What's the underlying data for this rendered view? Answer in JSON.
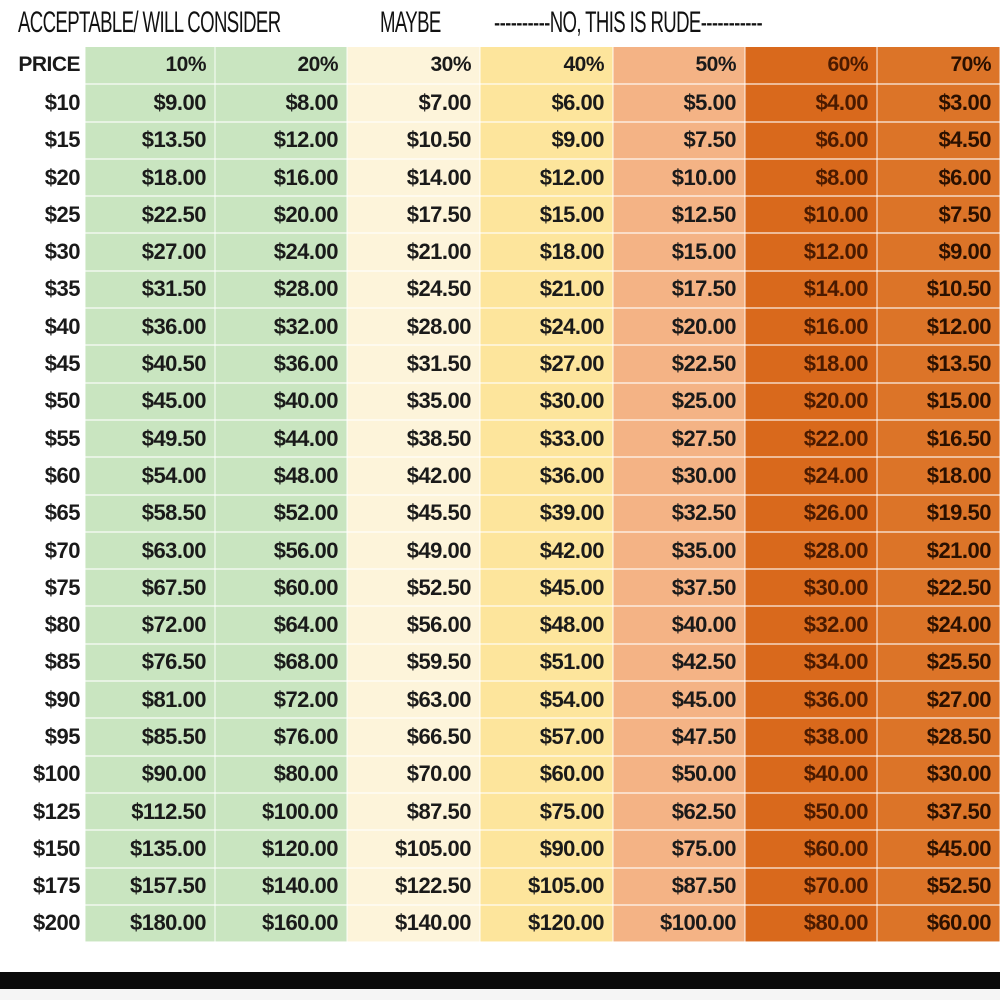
{
  "headings": {
    "acceptable": "ACCEPTABLE/ WILL CONSIDER",
    "maybe": "MAYBE",
    "rude": "----------NO, THIS IS RUDE-----------"
  },
  "colors": {
    "acceptable": "#c9e5c0",
    "maybe_30": "#fdf4da",
    "maybe_40": "#fde59c",
    "rude_50": "#f4b385",
    "rude_60": "#d9691c",
    "rude_70": "#dc7428"
  },
  "chart_data": {
    "type": "table",
    "columns": [
      "PRICE",
      "10%",
      "20%",
      "30%",
      "40%",
      "50%",
      "60%",
      "70%"
    ],
    "rows": [
      [
        "$10",
        "$9.00",
        "$8.00",
        "$7.00",
        "$6.00",
        "$5.00",
        "$4.00",
        "$3.00"
      ],
      [
        "$15",
        "$13.50",
        "$12.00",
        "$10.50",
        "$9.00",
        "$7.50",
        "$6.00",
        "$4.50"
      ],
      [
        "$20",
        "$18.00",
        "$16.00",
        "$14.00",
        "$12.00",
        "$10.00",
        "$8.00",
        "$6.00"
      ],
      [
        "$25",
        "$22.50",
        "$20.00",
        "$17.50",
        "$15.00",
        "$12.50",
        "$10.00",
        "$7.50"
      ],
      [
        "$30",
        "$27.00",
        "$24.00",
        "$21.00",
        "$18.00",
        "$15.00",
        "$12.00",
        "$9.00"
      ],
      [
        "$35",
        "$31.50",
        "$28.00",
        "$24.50",
        "$21.00",
        "$17.50",
        "$14.00",
        "$10.50"
      ],
      [
        "$40",
        "$36.00",
        "$32.00",
        "$28.00",
        "$24.00",
        "$20.00",
        "$16.00",
        "$12.00"
      ],
      [
        "$45",
        "$40.50",
        "$36.00",
        "$31.50",
        "$27.00",
        "$22.50",
        "$18.00",
        "$13.50"
      ],
      [
        "$50",
        "$45.00",
        "$40.00",
        "$35.00",
        "$30.00",
        "$25.00",
        "$20.00",
        "$15.00"
      ],
      [
        "$55",
        "$49.50",
        "$44.00",
        "$38.50",
        "$33.00",
        "$27.50",
        "$22.00",
        "$16.50"
      ],
      [
        "$60",
        "$54.00",
        "$48.00",
        "$42.00",
        "$36.00",
        "$30.00",
        "$24.00",
        "$18.00"
      ],
      [
        "$65",
        "$58.50",
        "$52.00",
        "$45.50",
        "$39.00",
        "$32.50",
        "$26.00",
        "$19.50"
      ],
      [
        "$70",
        "$63.00",
        "$56.00",
        "$49.00",
        "$42.00",
        "$35.00",
        "$28.00",
        "$21.00"
      ],
      [
        "$75",
        "$67.50",
        "$60.00",
        "$52.50",
        "$45.00",
        "$37.50",
        "$30.00",
        "$22.50"
      ],
      [
        "$80",
        "$72.00",
        "$64.00",
        "$56.00",
        "$48.00",
        "$40.00",
        "$32.00",
        "$24.00"
      ],
      [
        "$85",
        "$76.50",
        "$68.00",
        "$59.50",
        "$51.00",
        "$42.50",
        "$34.00",
        "$25.50"
      ],
      [
        "$90",
        "$81.00",
        "$72.00",
        "$63.00",
        "$54.00",
        "$45.00",
        "$36.00",
        "$27.00"
      ],
      [
        "$95",
        "$85.50",
        "$76.00",
        "$66.50",
        "$57.00",
        "$47.50",
        "$38.00",
        "$28.50"
      ],
      [
        "$100",
        "$90.00",
        "$80.00",
        "$70.00",
        "$60.00",
        "$50.00",
        "$40.00",
        "$30.00"
      ],
      [
        "$125",
        "$112.50",
        "$100.00",
        "$87.50",
        "$75.00",
        "$62.50",
        "$50.00",
        "$37.50"
      ],
      [
        "$150",
        "$135.00",
        "$120.00",
        "$105.00",
        "$90.00",
        "$75.00",
        "$60.00",
        "$45.00"
      ],
      [
        "$175",
        "$157.50",
        "$140.00",
        "$122.50",
        "$105.00",
        "$87.50",
        "$70.00",
        "$52.50"
      ],
      [
        "$200",
        "$180.00",
        "$160.00",
        "$140.00",
        "$120.00",
        "$100.00",
        "$80.00",
        "$60.00"
      ]
    ]
  }
}
